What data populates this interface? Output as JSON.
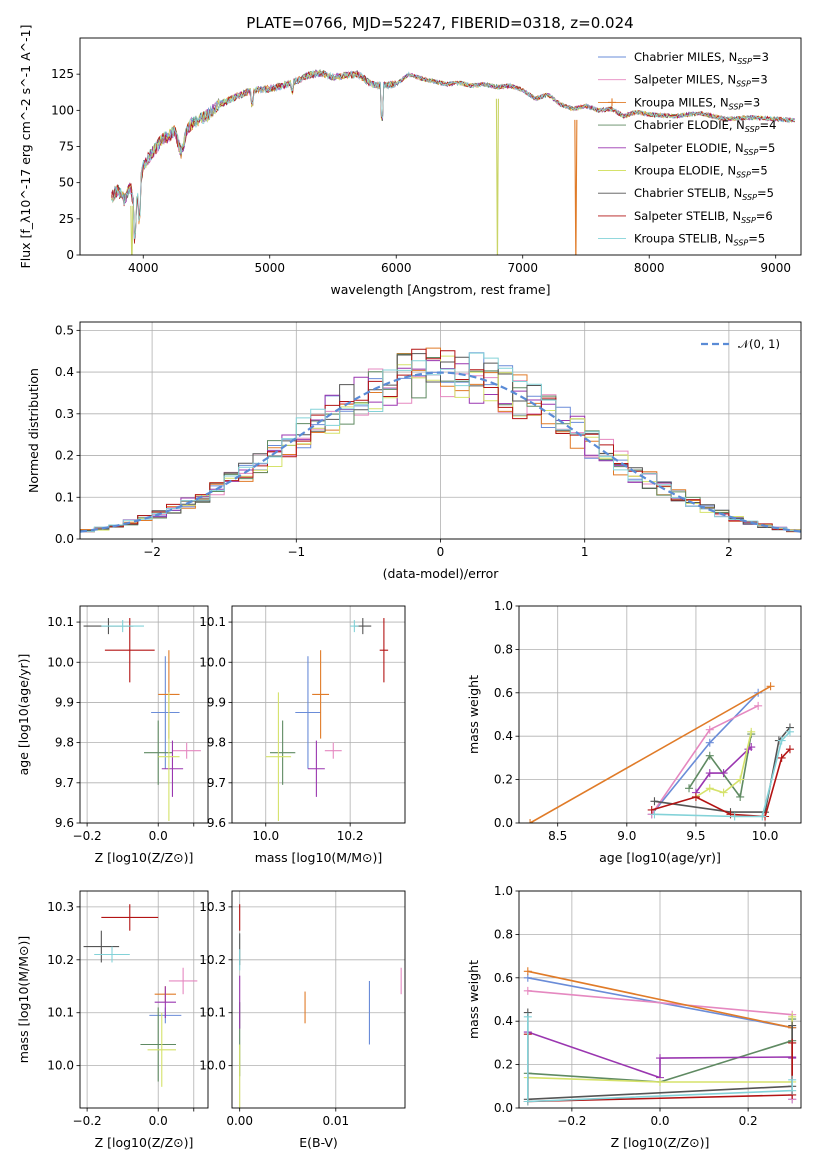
{
  "title": "PLATE=0766, MJD=52247, FIBERID=0318, z=0.024",
  "series_names": [
    "Chabrier MILES, N$_{SSP}$=3",
    "Salpeter MILES, N$_{SSP}$=3",
    "Kroupa MILES, N$_{SSP}$=3",
    "Chabrier ELODIE, N$_{SSP}$=4",
    "Salpeter ELODIE, N$_{SSP}$=5",
    "Kroupa ELODIE, N$_{SSP}$=5",
    "Chabrier STELIB, N$_{SSP}$=5",
    "Salpeter STELIB, N$_{SSP}$=6",
    "Kroupa STELIB, N$_{SSP}$=5"
  ],
  "colors": [
    "#6a8cd8",
    "#e588c0",
    "#e07b28",
    "#5f8a62",
    "#9a36b0",
    "#d5e26a",
    "#555555",
    "#b31414",
    "#83d2d8"
  ],
  "chart_data": [
    {
      "type": "line",
      "id": "spectrum",
      "xlabel": "wavelength [Angstrom, rest frame]",
      "ylabel": "Flux [f_λ10^-17 erg cm^-2 s^-1 A^-1]",
      "xlim": [
        3500,
        9200
      ],
      "ylim": [
        0,
        150
      ],
      "xticks": [
        4000,
        5000,
        6000,
        7000,
        8000,
        9000
      ],
      "yticks": [
        0,
        25,
        50,
        75,
        100,
        125
      ],
      "continuum_x": [
        3750,
        3800,
        3850,
        3900,
        3930,
        3960,
        4000,
        4050,
        4100,
        4150,
        4200,
        4250,
        4300,
        4350,
        4400,
        4500,
        4600,
        4700,
        4800,
        4900,
        5000,
        5100,
        5200,
        5300,
        5400,
        5500,
        5600,
        5700,
        5800,
        5900,
        6000,
        6100,
        6200,
        6300,
        6400,
        6500,
        6600,
        6700,
        6800,
        6900,
        7000,
        7100,
        7200,
        7300,
        7400,
        7500,
        7600,
        7700,
        7800,
        7900,
        8000,
        8200,
        8400,
        8600,
        8800,
        9000,
        9150
      ],
      "continuum_y": [
        40,
        45,
        38,
        48,
        30,
        40,
        62,
        68,
        74,
        80,
        82,
        86,
        70,
        88,
        92,
        96,
        104,
        108,
        112,
        114,
        115,
        117,
        120,
        124,
        126,
        123,
        124,
        125,
        118,
        117,
        118,
        125,
        122,
        120,
        118,
        119,
        117,
        118,
        116,
        117,
        114,
        108,
        111,
        104,
        101,
        103,
        100,
        101,
        96,
        99,
        97,
        96,
        98,
        94,
        95,
        94,
        93
      ],
      "drops": [
        {
          "series": "Kroupa ELODIE, N$_{SSP}$=5",
          "x": 3910,
          "color": "#c9d466"
        },
        {
          "series": "Kroupa ELODIE, N$_{SSP}$=5",
          "x": 6800,
          "color": "#c9d466"
        },
        {
          "series": "Kroupa MILES, N$_{SSP}$=3",
          "x": 7420,
          "color": "#e07b28"
        }
      ],
      "legend_position": "upper right"
    },
    {
      "type": "histogram",
      "id": "residuals",
      "xlabel": "(data-model)/error",
      "ylabel": "Normed distribution",
      "xlim": [
        -2.5,
        2.5
      ],
      "ylim": [
        0,
        0.52
      ],
      "xticks": [
        -2,
        -1,
        0,
        1,
        2
      ],
      "yticks": [
        0.0,
        0.1,
        0.2,
        0.3,
        0.4,
        0.5
      ],
      "bin_width": 0.1,
      "reference_curve": {
        "label": "𝒩(0, 1)",
        "mean": 0,
        "sigma": 1,
        "style": "dashed",
        "color": "#5a8bd6"
      },
      "legend_position": "upper right"
    },
    {
      "type": "scatter",
      "id": "age-vs-Z",
      "xlabel": "Z [log10(Z/Z⊙)]",
      "ylabel": "age [log10(age/yr)]",
      "xlim": [
        -0.22,
        0.14
      ],
      "ylim": [
        9.6,
        10.14
      ],
      "xticks": [
        -0.2,
        0.0,
        0.1
      ],
      "xticklabels": [
        "−0.2",
        "0.0",
        ""
      ],
      "yticks": [
        9.6,
        9.7,
        9.8,
        9.9,
        10.0,
        10.1
      ],
      "points": [
        {
          "x": 0.02,
          "y": 9.875,
          "xerr": 0.04,
          "yerr": 0.14
        },
        {
          "x": 0.08,
          "y": 9.78,
          "xerr": 0.04,
          "yerr": 0.02
        },
        {
          "x": 0.03,
          "y": 9.92,
          "xerr": 0.03,
          "yerr": 0.11
        },
        {
          "x": 0.0,
          "y": 9.775,
          "xerr": 0.04,
          "yerr": 0.08
        },
        {
          "x": 0.04,
          "y": 9.735,
          "xerr": 0.03,
          "yerr": 0.07
        },
        {
          "x": 0.03,
          "y": 9.765,
          "xerr": 0.03,
          "yerr": 0.16
        },
        {
          "x": -0.14,
          "y": 10.09,
          "xerr": 0.07,
          "yerr": 0.02
        },
        {
          "x": -0.08,
          "y": 10.03,
          "xerr": 0.07,
          "yerr": 0.08
        },
        {
          "x": -0.1,
          "y": 10.09,
          "xerr": 0.06,
          "yerr": 0.015
        }
      ]
    },
    {
      "type": "scatter",
      "id": "age-vs-mass",
      "xlabel": "mass [log10(M/M⊙)]",
      "ylabel": "",
      "xlim": [
        9.92,
        10.33
      ],
      "ylim": [
        9.6,
        10.14
      ],
      "xticks": [
        10.0,
        10.2
      ],
      "yticks": [
        9.6,
        9.7,
        9.8,
        9.9,
        10.0,
        10.1
      ],
      "points": [
        {
          "x": 10.1,
          "y": 9.875,
          "xerr": 0.03,
          "yerr": 0.14
        },
        {
          "x": 10.16,
          "y": 9.78,
          "xerr": 0.02,
          "yerr": 0.02
        },
        {
          "x": 10.13,
          "y": 9.92,
          "xerr": 0.02,
          "yerr": 0.11
        },
        {
          "x": 10.04,
          "y": 9.775,
          "xerr": 0.03,
          "yerr": 0.08
        },
        {
          "x": 10.12,
          "y": 9.735,
          "xerr": 0.02,
          "yerr": 0.07
        },
        {
          "x": 10.03,
          "y": 9.765,
          "xerr": 0.03,
          "yerr": 0.16
        },
        {
          "x": 10.23,
          "y": 10.09,
          "xerr": 0.02,
          "yerr": 0.02
        },
        {
          "x": 10.28,
          "y": 10.03,
          "xerr": 0.01,
          "yerr": 0.08
        },
        {
          "x": 10.21,
          "y": 10.09,
          "xerr": 0.01,
          "yerr": 0.015
        }
      ]
    },
    {
      "type": "line",
      "id": "mass-weight-vs-age",
      "xlabel": "age [log10(age/yr)]",
      "ylabel": "mass weight",
      "xlim": [
        8.22,
        10.26
      ],
      "ylim": [
        0,
        1
      ],
      "xticks": [
        8.5,
        9.0,
        9.5,
        10.0
      ],
      "yticks": [
        0.0,
        0.2,
        0.4,
        0.6,
        0.8,
        1.0
      ],
      "series": [
        {
          "name": "Chabrier MILES, N$_{SSP}$=3",
          "x": [
            9.18,
            9.6,
            9.95
          ],
          "y": [
            0.04,
            0.37,
            0.6
          ]
        },
        {
          "name": "Salpeter MILES, N$_{SSP}$=3",
          "x": [
            9.18,
            9.6,
            9.95
          ],
          "y": [
            0.04,
            0.43,
            0.54
          ]
        },
        {
          "name": "Kroupa MILES, N$_{SSP}$=3",
          "x": [
            8.3,
            10.04
          ],
          "y": [
            0.0,
            0.63
          ]
        },
        {
          "name": "Chabrier ELODIE, N$_{SSP}$=4",
          "x": [
            9.45,
            9.6,
            9.82,
            9.9
          ],
          "y": [
            0.16,
            0.31,
            0.12,
            0.41
          ]
        },
        {
          "name": "Salpeter ELODIE, N$_{SSP}$=5",
          "x": [
            9.5,
            9.6,
            9.7,
            9.88,
            9.9
          ],
          "y": [
            0.14,
            0.23,
            0.23,
            0.34,
            0.35
          ]
        },
        {
          "name": "Kroupa ELODIE, N$_{SSP}$=5",
          "x": [
            9.5,
            9.6,
            9.7,
            9.82,
            9.9
          ],
          "y": [
            0.12,
            0.16,
            0.14,
            0.2,
            0.42
          ]
        },
        {
          "name": "Chabrier STELIB, N$_{SSP}$=5",
          "x": [
            9.2,
            9.75,
            10.0,
            10.1,
            10.18
          ],
          "y": [
            0.1,
            0.05,
            0.05,
            0.38,
            0.44
          ]
        },
        {
          "name": "Salpeter STELIB, N$_{SSP}$=6",
          "x": [
            9.18,
            9.5,
            9.75,
            10.0,
            10.12,
            10.18
          ],
          "y": [
            0.06,
            0.12,
            0.04,
            0.03,
            0.3,
            0.34
          ]
        },
        {
          "name": "Kroupa STELIB, N$_{SSP}$=5",
          "x": [
            9.2,
            9.78,
            9.98,
            10.12,
            10.18
          ],
          "y": [
            0.04,
            0.03,
            0.03,
            0.38,
            0.42
          ]
        }
      ]
    },
    {
      "type": "scatter",
      "id": "mass-vs-Z",
      "xlabel": "Z [log10(Z/Z⊙)]",
      "ylabel": "mass [log10(M/M⊙)]",
      "xlim": [
        -0.22,
        0.14
      ],
      "ylim": [
        9.92,
        10.33
      ],
      "xticks": [
        -0.2,
        0.0,
        0.1
      ],
      "xticklabels": [
        "−0.2",
        "0.0",
        ""
      ],
      "yticks": [
        10.0,
        10.1,
        10.2,
        10.3
      ],
      "points": [
        {
          "x": 0.02,
          "y": 10.095,
          "xerr": 0.045,
          "yerr": 0.015
        },
        {
          "x": 0.07,
          "y": 10.16,
          "xerr": 0.04,
          "yerr": 0.025
        },
        {
          "x": 0.02,
          "y": 10.135,
          "xerr": 0.03,
          "yerr": 0.015
        },
        {
          "x": 0.0,
          "y": 10.04,
          "xerr": 0.05,
          "yerr": 0.07
        },
        {
          "x": 0.02,
          "y": 10.12,
          "xerr": 0.03,
          "yerr": 0.03
        },
        {
          "x": 0.01,
          "y": 10.03,
          "xerr": 0.04,
          "yerr": 0.07
        },
        {
          "x": -0.16,
          "y": 10.225,
          "xerr": 0.05,
          "yerr": 0.03
        },
        {
          "x": -0.08,
          "y": 10.28,
          "xerr": 0.08,
          "yerr": 0.025
        },
        {
          "x": -0.13,
          "y": 10.21,
          "xerr": 0.05,
          "yerr": 0.015
        }
      ]
    },
    {
      "type": "scatter",
      "id": "mass-vs-EBV",
      "xlabel": "E(B-V)",
      "ylabel": "",
      "xlim": [
        -0.0008,
        0.0172
      ],
      "ylim": [
        9.92,
        10.33
      ],
      "xticks": [
        0.0,
        0.01
      ],
      "yticks": [
        10.0,
        10.1,
        10.2,
        10.3
      ],
      "points": [
        {
          "x": 0.0135,
          "y": 10.1,
          "xerr": 0,
          "yerr": 0.06
        },
        {
          "x": 0.0168,
          "y": 10.16,
          "xerr": 0,
          "yerr": 0.025
        },
        {
          "x": 0.0068,
          "y": 10.11,
          "xerr": 0,
          "yerr": 0.03
        },
        {
          "x": 0.0,
          "y": 10.05,
          "xerr": 0,
          "yerr": 0.07
        },
        {
          "x": 0.0,
          "y": 10.12,
          "xerr": 0,
          "yerr": 0.05
        },
        {
          "x": 0.0,
          "y": 9.98,
          "xerr": 0,
          "yerr": 0.06
        },
        {
          "x": 0.0,
          "y": 10.22,
          "xerr": 0,
          "yerr": 0.03
        },
        {
          "x": 0.0,
          "y": 10.28,
          "xerr": 0,
          "yerr": 0.025
        },
        {
          "x": 0.0,
          "y": 10.2,
          "xerr": 0,
          "yerr": 0.02
        }
      ]
    },
    {
      "type": "line",
      "id": "mass-weight-vs-Z",
      "xlabel": "Z [log10(Z/Z⊙)]",
      "ylabel": "mass weight",
      "xlim": [
        -0.32,
        0.32
      ],
      "ylim": [
        0,
        1
      ],
      "xticks": [
        -0.2,
        0.0,
        0.2
      ],
      "yticks": [
        0.0,
        0.2,
        0.4,
        0.6,
        0.8,
        1.0
      ],
      "series": [
        {
          "name": "Chabrier MILES, N$_{SSP}$=3",
          "x": [
            -0.3,
            0.3,
            0.3
          ],
          "y": [
            0.6,
            0.37,
            0.04
          ]
        },
        {
          "name": "Salpeter MILES, N$_{SSP}$=3",
          "x": [
            -0.3,
            0.3,
            0.3
          ],
          "y": [
            0.54,
            0.43,
            0.04
          ]
        },
        {
          "name": "Kroupa MILES, N$_{SSP}$=3",
          "x": [
            -0.3,
            0.3
          ],
          "y": [
            0.63,
            0.37
          ]
        },
        {
          "name": "Chabrier ELODIE, N$_{SSP}$=4",
          "x": [
            -0.3,
            0.0,
            0.3,
            0.3
          ],
          "y": [
            0.16,
            0.12,
            0.31,
            0.41
          ]
        },
        {
          "name": "Salpeter ELODIE, N$_{SSP}$=5",
          "x": [
            -0.3,
            0.0,
            0.0,
            0.3,
            0.3
          ],
          "y": [
            0.35,
            0.14,
            0.23,
            0.235,
            0.23
          ]
        },
        {
          "name": "Kroupa ELODIE, N$_{SSP}$=5",
          "x": [
            -0.3,
            0.0,
            0.3,
            0.3
          ],
          "y": [
            0.14,
            0.12,
            0.12,
            0.42
          ]
        },
        {
          "name": "Chabrier STELIB, N$_{SSP}$=5",
          "x": [
            -0.3,
            -0.3,
            0.3,
            0.3
          ],
          "y": [
            0.44,
            0.04,
            0.1,
            0.38
          ]
        },
        {
          "name": "Salpeter STELIB, N$_{SSP}$=6",
          "x": [
            -0.3,
            -0.3,
            0.3,
            0.3
          ],
          "y": [
            0.34,
            0.03,
            0.06,
            0.3
          ]
        },
        {
          "name": "Kroupa STELIB, N$_{SSP}$=5",
          "x": [
            -0.3,
            -0.3,
            0.3,
            0.3
          ],
          "y": [
            0.42,
            0.03,
            0.08,
            0.13
          ]
        }
      ]
    }
  ]
}
